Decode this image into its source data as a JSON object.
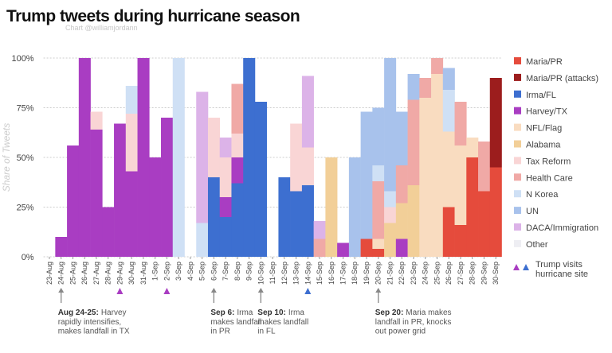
{
  "chart_data": {
    "type": "stacked_bar",
    "title": "Trump tweets during hurricane season",
    "subtitle": "Chart @williamjordann",
    "y_label": "Share of Tweets",
    "categories": [
      "23-Aug",
      "24-Aug",
      "25-Aug",
      "26-Aug",
      "27-Aug",
      "28-Aug",
      "29-Aug",
      "30-Aug",
      "31-Aug",
      "1-Sep",
      "2-Sep",
      "3-Sep",
      "4-Sep",
      "5-Sep",
      "6-Sep",
      "7-Sep",
      "8-Sep",
      "9-Sep",
      "10-Sep",
      "11-Sep",
      "12-Sep",
      "13-Sep",
      "14-Sep",
      "15-Sep",
      "16-Sep",
      "17-Sep",
      "18-Sep",
      "19-Sep",
      "20-Sep",
      "21-Sep",
      "22-Sep",
      "23-Sep",
      "24-Sep",
      "25-Sep",
      "26-Sep",
      "27-Sep",
      "28-Sep",
      "29-Sep",
      "30-Sep"
    ],
    "ylim": [
      0,
      100
    ],
    "yticks": [
      {
        "value": 0,
        "label": "0%"
      },
      {
        "value": 25,
        "label": "25%"
      },
      {
        "value": 50,
        "label": "50%"
      },
      {
        "value": 75,
        "label": "75%"
      },
      {
        "value": 100,
        "label": "100%"
      }
    ],
    "grid": true,
    "series": [
      {
        "name": "Maria/PR",
        "color": "#e54b3c",
        "values": [
          0,
          0,
          0,
          0,
          0,
          0,
          0,
          0,
          0,
          0,
          0,
          0,
          0,
          0,
          0,
          0,
          0,
          0,
          0,
          0,
          0,
          0,
          0,
          0,
          0,
          0,
          0,
          9,
          4,
          0,
          0,
          0,
          0,
          0,
          25,
          16,
          50,
          33,
          45
        ]
      },
      {
        "name": "Maria/PR (attacks)",
        "color": "#9c1d1d",
        "values": [
          0,
          0,
          0,
          0,
          0,
          0,
          0,
          0,
          0,
          0,
          0,
          0,
          0,
          0,
          0,
          0,
          0,
          0,
          0,
          0,
          0,
          0,
          0,
          0,
          0,
          0,
          0,
          0,
          0,
          0,
          0,
          0,
          0,
          0,
          0,
          0,
          0,
          0,
          45
        ]
      },
      {
        "name": "Irma/FL",
        "color": "#3d6fd0",
        "values": [
          0,
          0,
          0,
          0,
          0,
          0,
          0,
          0,
          0,
          0,
          0,
          0,
          0,
          0,
          40,
          20,
          37,
          100,
          78,
          0,
          40,
          33,
          36,
          0,
          0,
          0,
          0,
          0,
          0,
          0,
          0,
          0,
          0,
          0,
          0,
          0,
          0,
          0,
          0
        ]
      },
      {
        "name": "Harvey/TX",
        "color": "#a93dc2",
        "values": [
          0,
          10,
          56,
          100,
          64,
          25,
          67,
          43,
          100,
          50,
          70,
          0,
          0,
          0,
          0,
          10,
          13,
          0,
          0,
          0,
          0,
          0,
          0,
          0,
          0,
          7,
          0,
          0,
          0,
          0,
          9,
          0,
          0,
          0,
          0,
          0,
          0,
          0,
          0
        ]
      },
      {
        "name": "NFL/Flag",
        "color": "#f9dcc0",
        "values": [
          0,
          0,
          0,
          0,
          0,
          0,
          0,
          0,
          0,
          0,
          0,
          0,
          0,
          0,
          0,
          0,
          0,
          0,
          0,
          0,
          0,
          0,
          0,
          0,
          0,
          0,
          0,
          0,
          5,
          0,
          0,
          0,
          80,
          92,
          38,
          40,
          10,
          0,
          0
        ]
      },
      {
        "name": "Alabama",
        "color": "#f2cf98",
        "values": [
          0,
          0,
          0,
          0,
          0,
          0,
          0,
          0,
          0,
          0,
          0,
          0,
          0,
          0,
          0,
          0,
          0,
          0,
          0,
          0,
          0,
          0,
          0,
          0,
          50,
          0,
          0,
          0,
          0,
          17,
          18,
          36,
          0,
          0,
          0,
          0,
          0,
          0,
          0
        ]
      },
      {
        "name": "Tax Reform",
        "color": "#f9d5d5",
        "values": [
          0,
          0,
          0,
          0,
          9,
          0,
          0,
          29,
          0,
          0,
          0,
          0,
          0,
          0,
          30,
          20,
          12,
          0,
          0,
          0,
          0,
          34,
          19,
          0,
          0,
          0,
          0,
          0,
          0,
          8,
          0,
          0,
          0,
          0,
          0,
          0,
          0,
          0,
          0
        ]
      },
      {
        "name": "Health Care",
        "color": "#f0a9a6",
        "values": [
          0,
          0,
          0,
          0,
          0,
          0,
          0,
          0,
          0,
          0,
          0,
          0,
          0,
          0,
          0,
          0,
          25,
          0,
          0,
          0,
          0,
          0,
          0,
          9,
          0,
          0,
          0,
          0,
          29,
          0,
          19,
          43,
          10,
          8,
          0,
          22,
          0,
          25,
          0
        ]
      },
      {
        "name": "N Korea",
        "color": "#cfe0f5",
        "values": [
          0,
          0,
          0,
          0,
          0,
          0,
          0,
          14,
          0,
          0,
          0,
          100,
          0,
          17,
          0,
          0,
          0,
          0,
          0,
          0,
          0,
          0,
          0,
          0,
          0,
          0,
          0,
          0,
          8,
          8,
          0,
          0,
          0,
          0,
          21,
          0,
          0,
          0,
          0
        ]
      },
      {
        "name": "UN",
        "color": "#a8c2ec",
        "values": [
          0,
          0,
          0,
          0,
          0,
          0,
          0,
          0,
          0,
          0,
          0,
          0,
          0,
          0,
          0,
          0,
          0,
          0,
          0,
          0,
          0,
          0,
          0,
          0,
          0,
          0,
          50,
          64,
          29,
          67,
          27,
          13,
          0,
          0,
          11,
          0,
          0,
          0,
          0
        ]
      },
      {
        "name": "DACA/Immigration",
        "color": "#dcb3e8",
        "values": [
          0,
          0,
          0,
          0,
          0,
          0,
          0,
          0,
          0,
          0,
          0,
          0,
          0,
          66,
          0,
          10,
          0,
          0,
          0,
          0,
          0,
          0,
          36,
          9,
          0,
          0,
          0,
          0,
          0,
          0,
          0,
          0,
          0,
          0,
          0,
          0,
          0,
          0,
          0
        ]
      },
      {
        "name": "Other",
        "color": "#eeeef3",
        "values": [
          0,
          0,
          0,
          0,
          0,
          0,
          0,
          0,
          0,
          0,
          0,
          0,
          0,
          0,
          0,
          0,
          0,
          0,
          0,
          0,
          0,
          0,
          0,
          0,
          0,
          0,
          0,
          0,
          0,
          0,
          0,
          0,
          0,
          0,
          0,
          0,
          0,
          0,
          0
        ]
      }
    ],
    "visits": {
      "lines": [
        "Trump visits",
        "hurricane site"
      ],
      "marks": [
        {
          "at": "29-Aug",
          "color": "#a93dc2"
        },
        {
          "at": "2-Sep",
          "color": "#a93dc2"
        },
        {
          "at": "14-Sep",
          "color": "#3d6fd0"
        }
      ]
    },
    "annotations": [
      {
        "at": "24-Aug",
        "head": "Aug 24-25:",
        "lines": [
          "Harvey",
          "rapidly intensifies,",
          "makes landfall in TX"
        ]
      },
      {
        "at": "6-Sep",
        "head": "Sep 6:",
        "lines": [
          "Irma",
          "makes landfall",
          "in PR"
        ]
      },
      {
        "at": "10-Sep",
        "head": "Sep 10:",
        "lines": [
          "Irma",
          "makes landfall",
          "in FL"
        ]
      },
      {
        "at": "20-Sep",
        "head": "Sep 20:",
        "lines": [
          "Maria makes",
          "landfall in PR, knocks",
          "out power grid"
        ]
      }
    ]
  }
}
